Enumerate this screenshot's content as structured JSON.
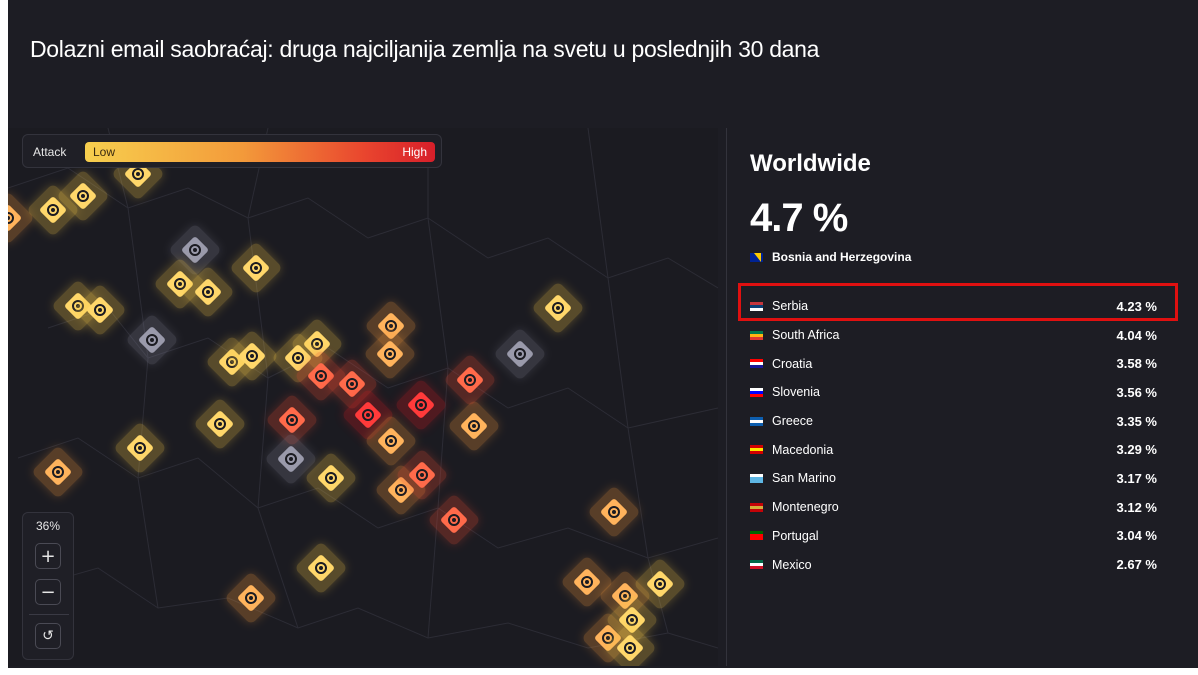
{
  "title": "Dolazni email saobraćaj: druga najciljanija zemlja na svetu u poslednjih 30 dana",
  "legend": {
    "label": "Attack",
    "low": "Low",
    "high": "High"
  },
  "zoom": {
    "level": "36%",
    "zoom_in": "+",
    "zoom_out": "−",
    "reset": "↺"
  },
  "panel": {
    "heading": "Worldwide",
    "top_value": "4.7 %",
    "top_country": "Bosnia and Herzegovina",
    "rows": [
      {
        "country": "Serbia",
        "value": "4.23 %",
        "flag": [
          "#c6363c",
          "#0c4076",
          "#ffffff"
        ]
      },
      {
        "country": "South Africa",
        "value": "4.04 %",
        "flag": [
          "#007a4d",
          "#ffb612",
          "#de3831"
        ]
      },
      {
        "country": "Croatia",
        "value": "3.58 %",
        "flag": [
          "#ff0000",
          "#ffffff",
          "#171796"
        ]
      },
      {
        "country": "Slovenia",
        "value": "3.56 %",
        "flag": [
          "#ffffff",
          "#0000ff",
          "#ff0000"
        ]
      },
      {
        "country": "Greece",
        "value": "3.35 %",
        "flag": [
          "#0d5eaf",
          "#ffffff",
          "#0d5eaf"
        ]
      },
      {
        "country": "Macedonia",
        "value": "3.29 %",
        "flag": [
          "#d20000",
          "#ffe600",
          "#d20000"
        ]
      },
      {
        "country": "San Marino",
        "value": "3.17 %",
        "flag": [
          "#ffffff",
          "#5eb6e4",
          "#5eb6e4"
        ]
      },
      {
        "country": "Montenegro",
        "value": "3.12 %",
        "flag": [
          "#c40308",
          "#d3ae3b",
          "#c40308"
        ]
      },
      {
        "country": "Portugal",
        "value": "3.04 %",
        "flag": [
          "#006600",
          "#ff0000",
          "#ff0000"
        ]
      },
      {
        "country": "Mexico",
        "value": "2.67 %",
        "flag": [
          "#006847",
          "#ffffff",
          "#ce1126"
        ]
      }
    ]
  },
  "colors": {
    "background": "#1d1d24",
    "highlight_box": "#e01010",
    "attack_low": "#f7cf4e",
    "attack_high": "#d71f2a",
    "inactive": "#8a8a9a"
  },
  "map_markers": [
    {
      "level": "medium"
    },
    {
      "level": "low"
    },
    {
      "level": "low"
    },
    {
      "level": "low"
    },
    {
      "level": "inactive"
    },
    {
      "level": "low"
    },
    {
      "level": "low"
    },
    {
      "level": "low"
    },
    {
      "level": "low"
    },
    {
      "level": "low"
    },
    {
      "level": "inactive"
    },
    {
      "level": "low"
    },
    {
      "level": "low"
    },
    {
      "level": "low"
    },
    {
      "level": "low"
    },
    {
      "level": "medium"
    },
    {
      "level": "medium"
    },
    {
      "level": "low"
    },
    {
      "level": "inactive"
    },
    {
      "level": "high"
    },
    {
      "level": "high"
    },
    {
      "level": "veryhigh"
    },
    {
      "level": "veryhigh"
    },
    {
      "level": "high"
    },
    {
      "level": "medium"
    },
    {
      "level": "medium"
    },
    {
      "level": "high"
    },
    {
      "level": "low"
    },
    {
      "level": "low"
    },
    {
      "level": "inactive"
    },
    {
      "level": "medium"
    },
    {
      "level": "low"
    },
    {
      "level": "medium"
    },
    {
      "level": "high"
    },
    {
      "level": "high"
    },
    {
      "level": "medium"
    },
    {
      "level": "low"
    },
    {
      "level": "medium"
    },
    {
      "level": "medium"
    },
    {
      "level": "medium"
    },
    {
      "level": "low"
    },
    {
      "level": "medium"
    },
    {
      "level": "low"
    },
    {
      "level": "low"
    }
  ]
}
